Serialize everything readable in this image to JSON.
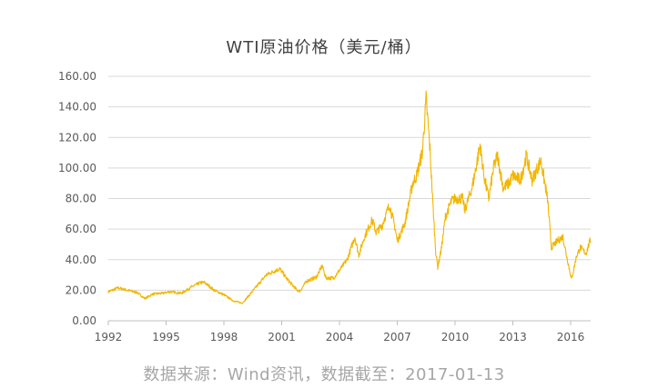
{
  "chart_data": {
    "type": "line",
    "title": "WTI原油价格（美元/桶）",
    "xlabel": "",
    "ylabel": "",
    "xlim": [
      1992,
      2017.04
    ],
    "ylim": [
      0,
      160
    ],
    "y_ticks": [
      "0.00",
      "20.00",
      "40.00",
      "60.00",
      "80.00",
      "100.00",
      "120.00",
      "140.00",
      "160.00"
    ],
    "x_ticks": [
      "1992",
      "1995",
      "1998",
      "2001",
      "2004",
      "2007",
      "2010",
      "2013",
      "2016"
    ],
    "grid": "horizontal",
    "legend": "none",
    "series": [
      {
        "name": "",
        "color": "#f2b600",
        "x": [
          1992.0,
          1992.5,
          1993.0,
          1993.5,
          1993.9,
          1994.3,
          1994.8,
          1995.2,
          1995.8,
          1996.3,
          1996.8,
          1997.0,
          1997.5,
          1998.0,
          1998.5,
          1998.95,
          1999.3,
          1999.8,
          2000.2,
          2000.7,
          2000.9,
          2001.3,
          2001.8,
          2001.95,
          2002.3,
          2002.8,
          2003.1,
          2003.3,
          2003.7,
          2004.0,
          2004.4,
          2004.8,
          2005.0,
          2005.3,
          2005.7,
          2005.9,
          2006.2,
          2006.6,
          2006.9,
          2007.0,
          2007.4,
          2007.8,
          2008.0,
          2008.3,
          2008.5,
          2008.7,
          2008.9,
          2009.0,
          2009.1,
          2009.3,
          2009.5,
          2009.8,
          2010.0,
          2010.4,
          2010.5,
          2010.9,
          2011.2,
          2011.3,
          2011.5,
          2011.75,
          2012.0,
          2012.2,
          2012.5,
          2012.8,
          2013.0,
          2013.4,
          2013.7,
          2014.0,
          2014.45,
          2014.8,
          2015.0,
          2015.3,
          2015.6,
          2015.8,
          2016.05,
          2016.3,
          2016.5,
          2016.8,
          2017.0,
          2017.04
        ],
        "y": [
          19.0,
          21.5,
          20.0,
          18.5,
          14.5,
          17.5,
          18.0,
          19.0,
          18.0,
          22.0,
          25.0,
          25.0,
          20.0,
          17.0,
          13.0,
          11.5,
          16.5,
          24.0,
          30.0,
          33.0,
          34.0,
          27.0,
          20.0,
          19.5,
          26.0,
          28.5,
          36.0,
          28.0,
          28.0,
          33.0,
          40.0,
          55.0,
          43.0,
          55.0,
          66.0,
          58.0,
          62.0,
          76.0,
          60.0,
          52.0,
          64.0,
          90.0,
          95.0,
          110.0,
          145.0,
          112.0,
          65.0,
          45.0,
          35.0,
          48.0,
          68.0,
          78.0,
          80.0,
          80.0,
          72.0,
          88.0,
          108.0,
          115.0,
          95.0,
          80.0,
          100.0,
          108.0,
          87.0,
          90.0,
          95.0,
          92.0,
          108.0,
          92.0,
          105.0,
          80.0,
          48.0,
          52.0,
          55.0,
          42.0,
          27.0,
          42.0,
          48.0,
          44.0,
          52.0,
          52.0
        ]
      }
    ]
  },
  "source_note": "数据来源：Wind资讯，数据截至：2017-01-13"
}
